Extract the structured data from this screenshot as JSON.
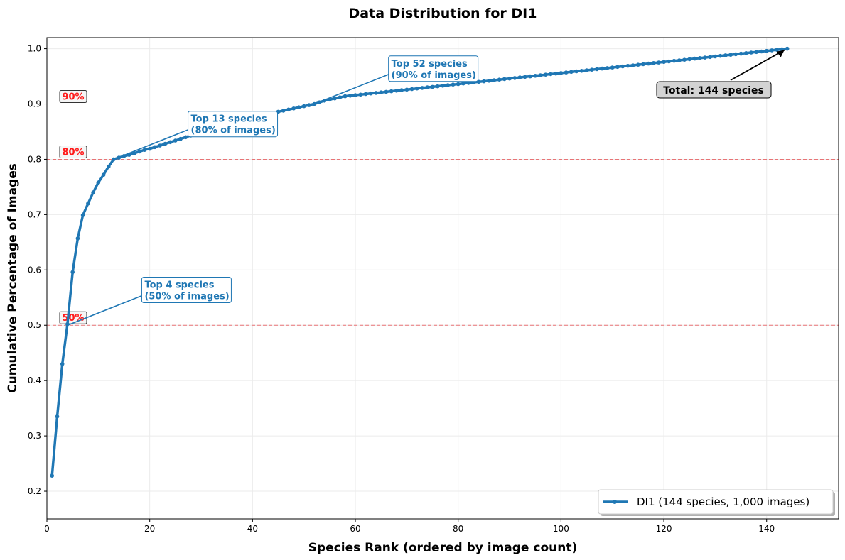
{
  "chart_data": {
    "type": "line",
    "title": "Data Distribution for DI1",
    "xlabel": "Species Rank (ordered by image count)",
    "ylabel": "Cumulative Percentage of Images",
    "xlim": [
      0,
      154
    ],
    "ylim": [
      0.15,
      1.02
    ],
    "x_ticks": [
      0,
      20,
      40,
      60,
      80,
      100,
      120,
      140
    ],
    "y_ticks": [
      0.2,
      0.3,
      0.4,
      0.5,
      0.6,
      0.7,
      0.8,
      0.9,
      1.0
    ],
    "x_tick_labels": [
      "0",
      "20",
      "40",
      "60",
      "80",
      "100",
      "120",
      "140"
    ],
    "y_tick_labels": [
      "0.2",
      "0.3",
      "0.4",
      "0.5",
      "0.6",
      "0.7",
      "0.8",
      "0.9",
      "1.0"
    ],
    "grid": true,
    "legend_position": "lower-right",
    "series": [
      {
        "name": "DI1 (144 species, 1,000 images)",
        "color": "#1f77b4",
        "x_start": 1,
        "x_end": 144,
        "y": [
          0.228,
          0.335,
          0.43,
          0.502,
          0.596,
          0.657,
          0.699,
          0.72,
          0.74,
          0.758,
          0.772,
          0.787,
          0.8,
          0.803,
          0.806,
          0.808,
          0.811,
          0.814,
          0.817,
          0.819,
          0.822,
          0.825,
          0.828,
          0.831,
          0.834,
          0.837,
          0.84,
          0.843,
          0.846,
          0.849,
          0.852,
          0.855,
          0.858,
          0.861,
          0.864,
          0.867,
          0.87,
          0.872,
          0.874,
          0.876,
          0.878,
          0.88,
          0.882,
          0.884,
          0.886,
          0.888,
          0.89,
          0.892,
          0.894,
          0.896,
          0.898,
          0.9,
          0.903,
          0.906,
          0.908,
          0.91,
          0.912,
          0.914,
          0.915,
          0.916,
          0.917,
          0.918,
          0.919,
          0.92,
          0.921,
          0.922,
          0.923,
          0.924,
          0.925,
          0.926,
          0.927,
          0.928,
          0.929,
          0.93,
          0.931,
          0.932,
          0.933,
          0.934,
          0.935,
          0.936,
          0.937,
          0.938,
          0.939,
          0.94,
          0.941,
          0.942,
          0.943,
          0.944,
          0.945,
          0.946,
          0.947,
          0.948,
          0.949,
          0.95,
          0.951,
          0.952,
          0.953,
          0.954,
          0.955,
          0.956,
          0.957,
          0.958,
          0.959,
          0.96,
          0.961,
          0.962,
          0.963,
          0.964,
          0.965,
          0.966,
          0.967,
          0.968,
          0.969,
          0.97,
          0.971,
          0.972,
          0.973,
          0.974,
          0.975,
          0.976,
          0.977,
          0.978,
          0.979,
          0.98,
          0.981,
          0.982,
          0.983,
          0.984,
          0.985,
          0.986,
          0.987,
          0.988,
          0.989,
          0.99,
          0.991,
          0.992,
          0.993,
          0.994,
          0.995,
          0.996,
          0.997,
          0.998,
          0.999,
          1.0
        ]
      }
    ],
    "threshold_lines": [
      {
        "y": 0.5,
        "label": "50%"
      },
      {
        "y": 0.8,
        "label": "80%"
      },
      {
        "y": 0.9,
        "label": "90%"
      }
    ],
    "annotations": [
      {
        "lines": [
          "Top 4 species",
          "(50% of images)"
        ],
        "point": [
          4,
          0.5
        ],
        "text_at": [
          19,
          0.56
        ]
      },
      {
        "lines": [
          "Top 13 species",
          "(80% of images)"
        ],
        "point": [
          13,
          0.8
        ],
        "text_at": [
          28,
          0.86
        ]
      },
      {
        "lines": [
          "Top 52 species",
          "(90% of images)"
        ],
        "point": [
          52,
          0.9
        ],
        "text_at": [
          67,
          0.96
        ]
      }
    ],
    "total_annotation": {
      "text": "Total: 144 species",
      "point": [
        144,
        1.0
      ]
    },
    "colors": {
      "line": "#1f77b4",
      "threshold": "#e8575a",
      "pct_label": "#ff1a1a",
      "grid": "#ebebeb"
    }
  }
}
